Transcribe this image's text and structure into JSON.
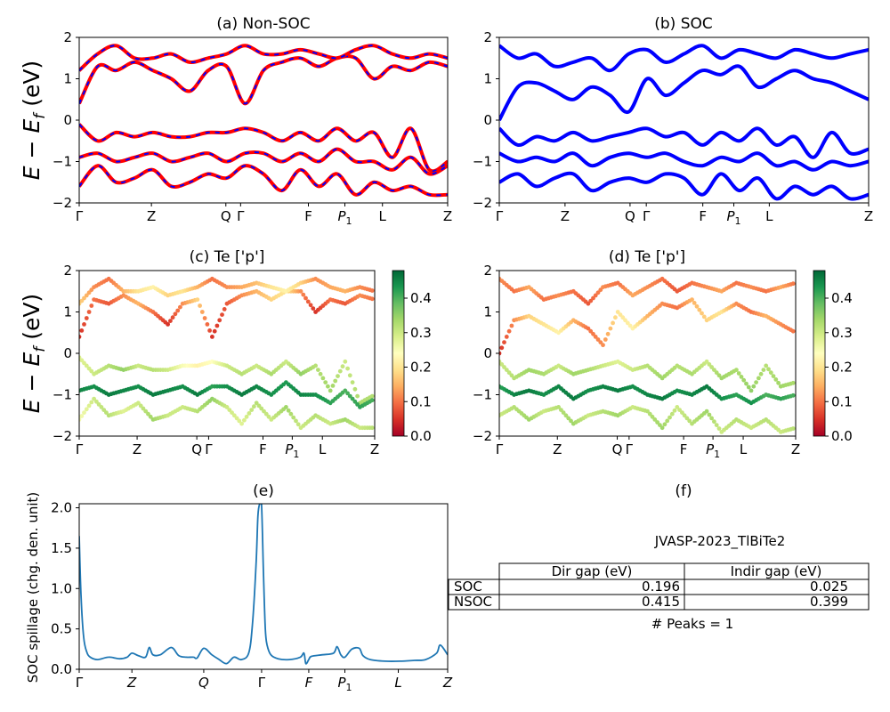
{
  "figure": {
    "ylabel_band": "E − E_f (eV)",
    "panel_a_title": "(a) Non-SOC",
    "panel_b_title": "(b) SOC",
    "panel_c_title": "(c)  Te ['p']",
    "panel_d_title": "(d) Te ['p']",
    "panel_e_title": "(e)",
    "panel_f_title": "(f)",
    "spillage_ylabel": "SOC spillage (chg. den. unit)",
    "material": "JVASP-2023_TlBiTe2",
    "peaks": "# Peaks = 1"
  },
  "kpath_labels": [
    "Γ",
    "Z",
    "Q",
    "Γ",
    "F",
    "P1",
    "L",
    "Z"
  ],
  "band_yticks": [
    "2",
    "1",
    "0",
    "−1",
    "−2"
  ],
  "colorbar_ticks": [
    "0.0",
    "0.1",
    "0.2",
    "0.3",
    "0.4"
  ],
  "colors": {
    "nonsoc_line": "#ff0000",
    "nonsoc_dash": "#0000ff",
    "soc_line": "#0000ff",
    "spillage_line": "#1f77b4",
    "colormap": "RdYlGn"
  },
  "table": {
    "headers": [
      "",
      "Dir gap (eV)",
      "Indir gap (eV)"
    ],
    "rows": [
      [
        "SOC",
        "0.196",
        "0.025"
      ],
      [
        "NSOC",
        "0.415",
        "0.399"
      ]
    ]
  },
  "chart_data": [
    {
      "panel": "a",
      "type": "line",
      "title": "(a) Non-SOC",
      "ylabel": "E − E_f (eV)",
      "ylim": [
        -2,
        2
      ],
      "x_ticks": [
        "Γ",
        "Z",
        "Q",
        "Γ",
        "F",
        "P1",
        "L",
        "Z"
      ],
      "x_tick_positions": [
        0,
        0.196,
        0.398,
        0.438,
        0.622,
        0.721,
        0.823,
        1.0
      ],
      "x": [
        0,
        0.05,
        0.1,
        0.15,
        0.2,
        0.25,
        0.3,
        0.35,
        0.4,
        0.45,
        0.5,
        0.55,
        0.6,
        0.65,
        0.7,
        0.75,
        0.8,
        0.85,
        0.9,
        0.95,
        1.0
      ],
      "series": [
        {
          "values": [
            0.4,
            1.3,
            1.2,
            1.4,
            1.2,
            1.0,
            0.7,
            1.2,
            1.3,
            0.4,
            1.2,
            1.4,
            1.5,
            1.3,
            1.5,
            1.5,
            1.0,
            1.3,
            1.2,
            1.4,
            1.3
          ]
        },
        {
          "values": [
            1.2,
            1.6,
            1.8,
            1.5,
            1.5,
            1.6,
            1.4,
            1.5,
            1.6,
            1.8,
            1.6,
            1.6,
            1.7,
            1.6,
            1.5,
            1.7,
            1.8,
            1.6,
            1.5,
            1.6,
            1.5
          ]
        },
        {
          "values": [
            -0.1,
            -0.5,
            -0.3,
            -0.4,
            -0.3,
            -0.4,
            -0.4,
            -0.3,
            -0.3,
            -0.2,
            -0.3,
            -0.5,
            -0.3,
            -0.5,
            -0.2,
            -0.5,
            -0.3,
            -0.9,
            -0.2,
            -1.2,
            -1.0
          ]
        },
        {
          "values": [
            -0.9,
            -0.8,
            -1.0,
            -0.9,
            -0.8,
            -1.0,
            -0.9,
            -0.8,
            -1.0,
            -0.8,
            -0.8,
            -1.0,
            -0.8,
            -1.0,
            -0.7,
            -1.0,
            -1.0,
            -1.2,
            -0.9,
            -1.3,
            -1.1
          ]
        },
        {
          "values": [
            -1.6,
            -1.1,
            -1.5,
            -1.4,
            -1.2,
            -1.6,
            -1.5,
            -1.3,
            -1.4,
            -1.1,
            -1.3,
            -1.7,
            -1.2,
            -1.6,
            -1.3,
            -1.8,
            -1.5,
            -1.7,
            -1.6,
            -1.8,
            -1.8
          ]
        }
      ]
    },
    {
      "panel": "b",
      "type": "line",
      "title": "(b) SOC",
      "ylim": [
        -2,
        2
      ],
      "x_ticks": [
        "Γ",
        "Z",
        "Q",
        "Γ",
        "F",
        "P1",
        "L",
        "Z"
      ],
      "x_tick_positions": [
        0,
        0.178,
        0.354,
        0.398,
        0.551,
        0.635,
        0.731,
        1.0
      ],
      "x": [
        0,
        0.05,
        0.1,
        0.15,
        0.2,
        0.25,
        0.3,
        0.35,
        0.4,
        0.45,
        0.5,
        0.55,
        0.6,
        0.65,
        0.7,
        0.75,
        0.8,
        0.85,
        0.9,
        0.95,
        1.0
      ],
      "series": [
        {
          "values": [
            0.0,
            0.8,
            0.9,
            0.7,
            0.5,
            0.8,
            0.6,
            0.2,
            1.0,
            0.6,
            0.9,
            1.2,
            1.1,
            1.3,
            0.8,
            1.0,
            1.2,
            1.0,
            0.9,
            0.7,
            0.5
          ]
        },
        {
          "values": [
            1.8,
            1.5,
            1.6,
            1.3,
            1.4,
            1.5,
            1.2,
            1.6,
            1.7,
            1.4,
            1.6,
            1.8,
            1.5,
            1.7,
            1.6,
            1.5,
            1.7,
            1.6,
            1.5,
            1.6,
            1.7
          ]
        },
        {
          "values": [
            -0.2,
            -0.6,
            -0.4,
            -0.5,
            -0.3,
            -0.5,
            -0.4,
            -0.3,
            -0.2,
            -0.4,
            -0.3,
            -0.6,
            -0.3,
            -0.5,
            -0.2,
            -0.6,
            -0.4,
            -0.9,
            -0.3,
            -0.8,
            -0.7
          ]
        },
        {
          "values": [
            -0.8,
            -1.0,
            -0.9,
            -1.0,
            -0.8,
            -1.1,
            -0.9,
            -0.8,
            -0.9,
            -0.8,
            -1.0,
            -1.1,
            -0.9,
            -1.0,
            -0.8,
            -1.1,
            -1.0,
            -1.2,
            -1.0,
            -1.1,
            -1.0
          ]
        },
        {
          "values": [
            -1.5,
            -1.3,
            -1.6,
            -1.4,
            -1.3,
            -1.7,
            -1.5,
            -1.4,
            -1.5,
            -1.3,
            -1.4,
            -1.8,
            -1.3,
            -1.7,
            -1.4,
            -1.9,
            -1.6,
            -1.8,
            -1.6,
            -1.9,
            -1.8
          ]
        }
      ]
    },
    {
      "panel": "c",
      "type": "scatter",
      "title": "(c)  Te ['p']",
      "ylabel": "E − E_f (eV)",
      "ylim": [
        -2,
        2
      ],
      "clim": [
        0.0,
        0.48
      ],
      "colorbar_ticks": [
        0.0,
        0.1,
        0.2,
        0.3,
        0.4
      ],
      "x_ticks": [
        "Γ",
        "Z",
        "Q",
        "Γ",
        "F",
        "P1",
        "L",
        "Z"
      ],
      "x_tick_positions": [
        0,
        0.196,
        0.398,
        0.438,
        0.622,
        0.721,
        0.823,
        1.0
      ],
      "x": [
        0,
        0.05,
        0.1,
        0.15,
        0.2,
        0.25,
        0.3,
        0.35,
        0.4,
        0.45,
        0.5,
        0.55,
        0.6,
        0.65,
        0.7,
        0.75,
        0.8,
        0.85,
        0.9,
        0.95,
        1.0
      ],
      "series": [
        {
          "values": [
            0.4,
            1.3,
            1.2,
            1.4,
            1.2,
            1.0,
            0.7,
            1.2,
            1.3,
            0.4,
            1.2,
            1.4,
            1.5,
            1.3,
            1.5,
            1.5,
            1.0,
            1.3,
            1.2,
            1.4,
            1.3
          ],
          "weights": [
            0.05,
            0.1,
            0.08,
            0.12,
            0.15,
            0.1,
            0.05,
            0.12,
            0.18,
            0.05,
            0.08,
            0.12,
            0.15,
            0.18,
            0.2,
            0.12,
            0.05,
            0.1,
            0.08,
            0.12,
            0.1
          ]
        },
        {
          "values": [
            1.2,
            1.6,
            1.8,
            1.5,
            1.5,
            1.6,
            1.4,
            1.5,
            1.6,
            1.8,
            1.6,
            1.6,
            1.7,
            1.6,
            1.5,
            1.7,
            1.8,
            1.6,
            1.5,
            1.6,
            1.5
          ],
          "weights": [
            0.18,
            0.12,
            0.1,
            0.15,
            0.2,
            0.22,
            0.18,
            0.2,
            0.15,
            0.1,
            0.12,
            0.14,
            0.16,
            0.2,
            0.22,
            0.18,
            0.12,
            0.14,
            0.15,
            0.12,
            0.1
          ]
        },
        {
          "values": [
            -0.1,
            -0.5,
            -0.3,
            -0.4,
            -0.3,
            -0.4,
            -0.4,
            -0.3,
            -0.3,
            -0.2,
            -0.3,
            -0.5,
            -0.3,
            -0.5,
            -0.2,
            -0.5,
            -0.3,
            -0.9,
            -0.2,
            -1.2,
            -1.0
          ],
          "weights": [
            0.28,
            0.3,
            0.32,
            0.35,
            0.3,
            0.32,
            0.3,
            0.25,
            0.22,
            0.24,
            0.3,
            0.32,
            0.3,
            0.33,
            0.3,
            0.35,
            0.32,
            0.34,
            0.3,
            0.33,
            0.32
          ]
        },
        {
          "values": [
            -0.9,
            -0.8,
            -1.0,
            -0.9,
            -0.8,
            -1.0,
            -0.9,
            -0.8,
            -1.0,
            -0.8,
            -0.8,
            -1.0,
            -0.8,
            -1.0,
            -0.7,
            -1.0,
            -1.0,
            -1.2,
            -0.9,
            -1.3,
            -1.1
          ],
          "weights": [
            0.45,
            0.44,
            0.46,
            0.45,
            0.44,
            0.46,
            0.45,
            0.44,
            0.46,
            0.42,
            0.44,
            0.46,
            0.45,
            0.44,
            0.43,
            0.45,
            0.44,
            0.42,
            0.4,
            0.42,
            0.4
          ]
        },
        {
          "values": [
            -1.6,
            -1.1,
            -1.5,
            -1.4,
            -1.2,
            -1.6,
            -1.5,
            -1.3,
            -1.4,
            -1.1,
            -1.3,
            -1.7,
            -1.2,
            -1.6,
            -1.3,
            -1.8,
            -1.5,
            -1.7,
            -1.6,
            -1.8,
            -1.8
          ],
          "weights": [
            0.25,
            0.3,
            0.32,
            0.28,
            0.3,
            0.34,
            0.3,
            0.3,
            0.32,
            0.35,
            0.3,
            0.28,
            0.32,
            0.3,
            0.34,
            0.3,
            0.32,
            0.3,
            0.34,
            0.3,
            0.32
          ]
        }
      ]
    },
    {
      "panel": "d",
      "type": "scatter",
      "title": "(d) Te ['p']",
      "ylim": [
        -2,
        2
      ],
      "clim": [
        0.0,
        0.48
      ],
      "colorbar_ticks": [
        0.0,
        0.1,
        0.2,
        0.3,
        0.4
      ],
      "x_ticks": [
        "Γ",
        "Z",
        "Q",
        "Γ",
        "F",
        "P1",
        "L",
        "Z"
      ],
      "x_tick_positions": [
        0,
        0.196,
        0.398,
        0.438,
        0.622,
        0.721,
        0.823,
        1.0
      ],
      "x": [
        0,
        0.05,
        0.1,
        0.15,
        0.2,
        0.25,
        0.3,
        0.35,
        0.4,
        0.45,
        0.5,
        0.55,
        0.6,
        0.65,
        0.7,
        0.75,
        0.8,
        0.85,
        0.9,
        0.95,
        1.0
      ],
      "series": [
        {
          "values": [
            0.0,
            0.8,
            0.9,
            0.7,
            0.5,
            0.8,
            0.6,
            0.2,
            1.0,
            0.6,
            0.9,
            1.2,
            1.1,
            1.3,
            0.8,
            1.0,
            1.2,
            1.0,
            0.9,
            0.7,
            0.5
          ],
          "weights": [
            0.05,
            0.12,
            0.18,
            0.2,
            0.22,
            0.15,
            0.1,
            0.12,
            0.2,
            0.22,
            0.15,
            0.12,
            0.1,
            0.15,
            0.18,
            0.2,
            0.12,
            0.1,
            0.15,
            0.12,
            0.1
          ]
        },
        {
          "values": [
            1.8,
            1.5,
            1.6,
            1.3,
            1.4,
            1.5,
            1.2,
            1.6,
            1.7,
            1.4,
            1.6,
            1.8,
            1.5,
            1.7,
            1.6,
            1.5,
            1.7,
            1.6,
            1.5,
            1.6,
            1.7
          ],
          "weights": [
            0.12,
            0.1,
            0.14,
            0.1,
            0.12,
            0.1,
            0.08,
            0.12,
            0.1,
            0.14,
            0.12,
            0.1,
            0.08,
            0.1,
            0.12,
            0.14,
            0.1,
            0.12,
            0.1,
            0.14,
            0.1
          ]
        },
        {
          "values": [
            -0.2,
            -0.6,
            -0.4,
            -0.5,
            -0.3,
            -0.5,
            -0.4,
            -0.3,
            -0.2,
            -0.4,
            -0.3,
            -0.6,
            -0.3,
            -0.5,
            -0.2,
            -0.6,
            -0.4,
            -0.9,
            -0.3,
            -0.8,
            -0.7
          ],
          "weights": [
            0.3,
            0.32,
            0.34,
            0.33,
            0.3,
            0.34,
            0.33,
            0.3,
            0.28,
            0.3,
            0.32,
            0.34,
            0.32,
            0.33,
            0.3,
            0.34,
            0.33,
            0.35,
            0.32,
            0.34,
            0.33
          ]
        },
        {
          "values": [
            -0.8,
            -1.0,
            -0.9,
            -1.0,
            -0.8,
            -1.1,
            -0.9,
            -0.8,
            -0.9,
            -0.8,
            -1.0,
            -1.1,
            -0.9,
            -1.0,
            -0.8,
            -1.1,
            -1.0,
            -1.2,
            -1.0,
            -1.1,
            -1.0
          ],
          "weights": [
            0.42,
            0.45,
            0.46,
            0.44,
            0.45,
            0.46,
            0.44,
            0.45,
            0.46,
            0.44,
            0.45,
            0.46,
            0.44,
            0.45,
            0.46,
            0.44,
            0.42,
            0.44,
            0.4,
            0.42,
            0.4
          ]
        },
        {
          "values": [
            -1.5,
            -1.3,
            -1.6,
            -1.4,
            -1.3,
            -1.7,
            -1.5,
            -1.4,
            -1.5,
            -1.3,
            -1.4,
            -1.8,
            -1.3,
            -1.7,
            -1.4,
            -1.9,
            -1.6,
            -1.8,
            -1.6,
            -1.9,
            -1.8
          ],
          "weights": [
            0.3,
            0.32,
            0.34,
            0.3,
            0.32,
            0.34,
            0.3,
            0.32,
            0.34,
            0.3,
            0.32,
            0.34,
            0.3,
            0.32,
            0.34,
            0.3,
            0.32,
            0.3,
            0.32,
            0.3,
            0.32
          ]
        }
      ]
    },
    {
      "panel": "e",
      "type": "line",
      "title": "(e)",
      "ylabel": "SOC spillage (chg. den. unit)",
      "ylim": [
        0,
        2.05
      ],
      "yticks": [
        0.0,
        0.5,
        1.0,
        1.5,
        2.0
      ],
      "x_ticks": [
        "Γ",
        "Z",
        "Q",
        "Γ",
        "F",
        "P1",
        "L",
        "Z"
      ],
      "x_tick_positions": [
        0,
        0.143,
        0.338,
        0.495,
        0.623,
        0.721,
        0.866,
        1.0
      ],
      "x": [
        0,
        0.005,
        0.012,
        0.02,
        0.03,
        0.05,
        0.08,
        0.11,
        0.13,
        0.143,
        0.16,
        0.18,
        0.19,
        0.2,
        0.22,
        0.25,
        0.27,
        0.29,
        0.31,
        0.32,
        0.338,
        0.36,
        0.38,
        0.4,
        0.42,
        0.44,
        0.46,
        0.47,
        0.48,
        0.485,
        0.49,
        0.495,
        0.5,
        0.505,
        0.51,
        0.52,
        0.54,
        0.57,
        0.6,
        0.61,
        0.615,
        0.623,
        0.63,
        0.66,
        0.69,
        0.7,
        0.71,
        0.721,
        0.74,
        0.76,
        0.77,
        0.79,
        0.83,
        0.87,
        0.91,
        0.94,
        0.97,
        0.98,
        1.0
      ],
      "series": [
        {
          "name": "",
          "values": [
            1.65,
            0.9,
            0.4,
            0.22,
            0.15,
            0.12,
            0.15,
            0.13,
            0.15,
            0.2,
            0.17,
            0.15,
            0.27,
            0.18,
            0.18,
            0.27,
            0.17,
            0.15,
            0.15,
            0.14,
            0.26,
            0.18,
            0.12,
            0.07,
            0.15,
            0.12,
            0.2,
            0.55,
            1.3,
            1.9,
            2.05,
            2.03,
            1.2,
            0.5,
            0.3,
            0.18,
            0.13,
            0.12,
            0.15,
            0.2,
            0.07,
            0.12,
            0.16,
            0.18,
            0.2,
            0.28,
            0.18,
            0.15,
            0.25,
            0.26,
            0.17,
            0.12,
            0.1,
            0.1,
            0.11,
            0.12,
            0.2,
            0.3,
            0.18
          ]
        }
      ]
    },
    {
      "panel": "f",
      "type": "table",
      "title": "(f)",
      "columns": [
        "",
        "Dir gap (eV)",
        "Indir gap (eV)"
      ],
      "rows": [
        [
          "SOC",
          0.196,
          0.025
        ],
        [
          "NSOC",
          0.415,
          0.399
        ]
      ]
    }
  ]
}
